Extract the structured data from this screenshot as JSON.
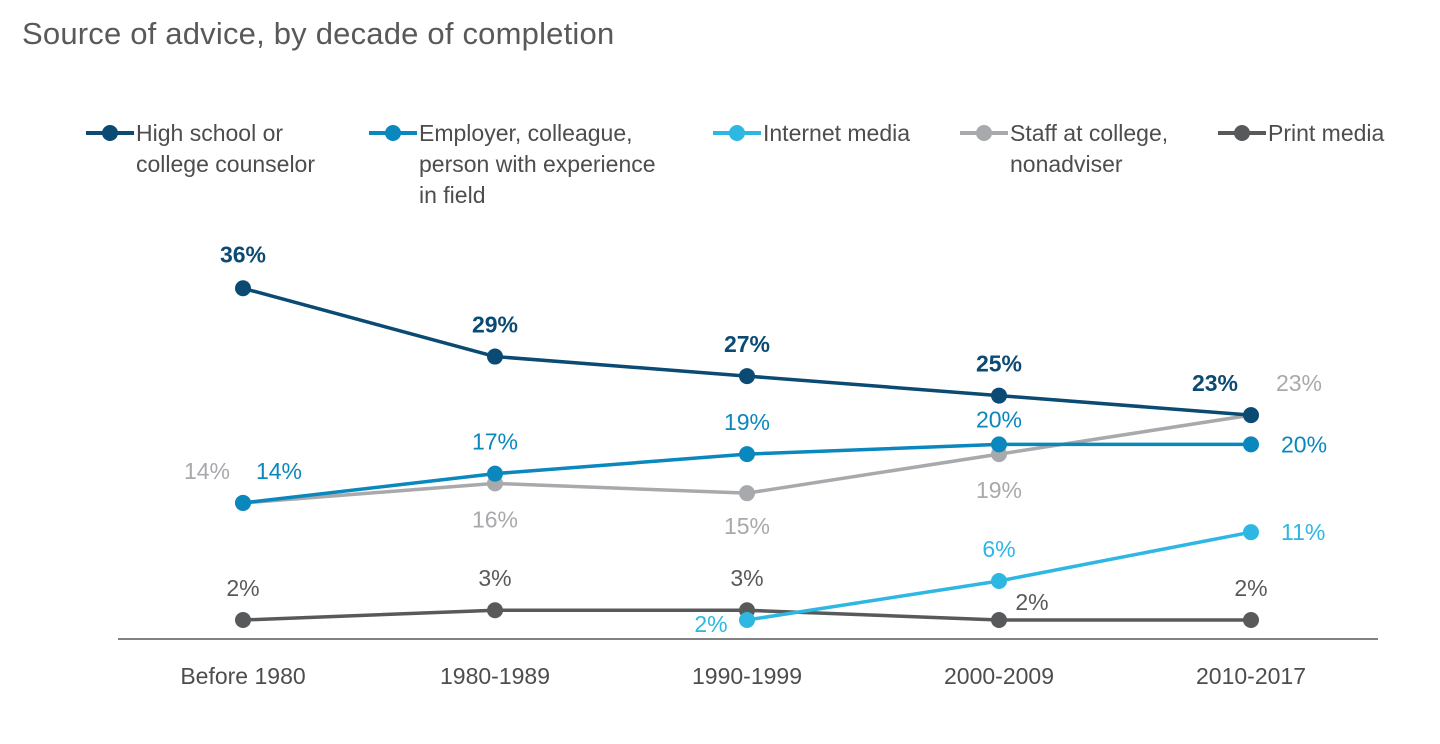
{
  "chart_data": {
    "type": "line",
    "title": "Source of advice, by decade of completion",
    "categories": [
      "Before 1980",
      "1980-1989",
      "1990-1999",
      "2000-2009",
      "2010-2017"
    ],
    "ylim": [
      0,
      40
    ],
    "grid": false,
    "legend_position": "top",
    "series": [
      {
        "name": "High school or\ncollege counselor",
        "color": "#0a4a73",
        "values": [
          36,
          29,
          27,
          25,
          23
        ],
        "labels": [
          "36%",
          "29%",
          "27%",
          "25%",
          "23%"
        ]
      },
      {
        "name": "Employer, colleague,\nperson with experience\nin field",
        "color": "#0a87bd",
        "values": [
          14,
          17,
          19,
          20,
          20
        ],
        "labels": [
          "14%",
          "17%",
          "19%",
          "20%",
          "20%"
        ]
      },
      {
        "name": "Internet media",
        "color": "#2db7e2",
        "values": [
          null,
          null,
          2,
          6,
          11
        ],
        "labels": [
          null,
          null,
          "2%",
          "6%",
          "11%"
        ]
      },
      {
        "name": "Staff at college,\nnonadviser",
        "color": "#a7a9ac",
        "values": [
          14,
          16,
          15,
          19,
          23
        ],
        "labels": [
          "14%",
          "16%",
          "15%",
          "19%",
          "23%"
        ]
      },
      {
        "name": "Print media",
        "color": "#58595b",
        "values": [
          2,
          3,
          3,
          2,
          2
        ],
        "labels": [
          "2%",
          "3%",
          "3%",
          "2%",
          "2%"
        ]
      }
    ]
  }
}
